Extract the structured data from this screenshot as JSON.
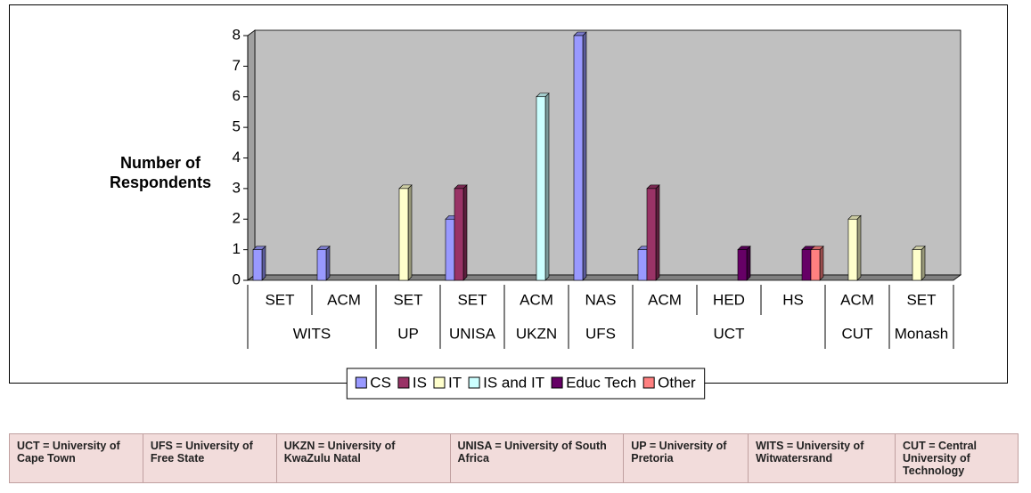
{
  "chart_data": {
    "type": "bar",
    "y_label": "Number of Respondents",
    "categories": [
      "SET",
      "ACM",
      "SET",
      "SET",
      "ACM",
      "NAS",
      "ACM",
      "HED",
      "HS",
      "ACM",
      "SET"
    ],
    "category_groups": [
      "WITS",
      "WITS",
      "UP",
      "UNISA",
      "UKZN",
      "UFS",
      "UCT",
      "UCT",
      "UCT",
      "CUT",
      "Monash"
    ],
    "series": [
      {
        "name": "CS",
        "color": "#9999ff",
        "values": [
          1,
          1,
          null,
          2,
          null,
          8,
          1,
          null,
          null,
          null,
          null
        ]
      },
      {
        "name": "IS",
        "color": "#993366",
        "values": [
          null,
          null,
          null,
          3,
          null,
          null,
          3,
          null,
          null,
          null,
          null
        ]
      },
      {
        "name": "IT",
        "color": "#ffffcc",
        "values": [
          null,
          null,
          3,
          null,
          null,
          null,
          null,
          null,
          null,
          2,
          1
        ]
      },
      {
        "name": "IS and IT",
        "color": "#ccffff",
        "values": [
          null,
          null,
          null,
          null,
          6,
          null,
          null,
          null,
          null,
          null,
          null
        ]
      },
      {
        "name": "Educ Tech",
        "color": "#660066",
        "values": [
          null,
          null,
          null,
          null,
          null,
          null,
          null,
          1,
          1,
          null,
          null
        ]
      },
      {
        "name": "Other",
        "color": "#ff8080",
        "values": [
          null,
          null,
          null,
          null,
          null,
          null,
          null,
          null,
          1,
          null,
          null
        ]
      }
    ],
    "ylim": [
      0,
      8
    ],
    "yticks": [
      0,
      1,
      2,
      3,
      4,
      5,
      6,
      7,
      8
    ],
    "legend": "bottom"
  },
  "table": {
    "rows": [
      [
        "UCT = University of Cape Town",
        "UFS = University of Free State",
        "UKZN = University of KwaZulu Natal",
        "UNISA = University of South Africa",
        "UP = University of Pretoria",
        "WITS = University of Witwatersrand",
        "CUT = Central University of Technology"
      ]
    ]
  }
}
